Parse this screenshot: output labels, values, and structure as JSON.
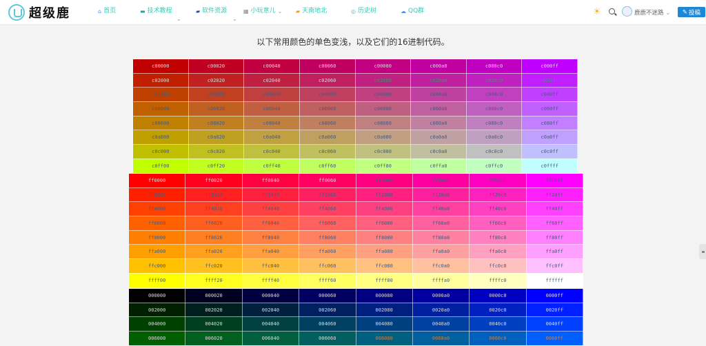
{
  "header": {
    "logo_text": "超级鹿",
    "nav": [
      {
        "label": "首页",
        "icon": "home-icon",
        "glyph": "⌂",
        "color": "#4a90e2"
      },
      {
        "label": "技术教程",
        "icon": "monitor-icon",
        "glyph": "▬",
        "color": "#2aa198"
      },
      {
        "label": "软件资源",
        "icon": "folder-icon",
        "glyph": "▰",
        "color": "#2a4a9a"
      },
      {
        "label": "小玩意儿",
        "icon": "toy-icon",
        "glyph": "▦",
        "color": "#888"
      },
      {
        "label": "天南地北",
        "icon": "chat-icon",
        "glyph": "▰",
        "color": "#f39c12"
      },
      {
        "label": "历史树",
        "icon": "clock-icon",
        "glyph": "◎",
        "color": "#3cc8b4"
      },
      {
        "label": "QQ群",
        "icon": "cloud-icon",
        "glyph": "☁",
        "color": "#4a90e2"
      }
    ],
    "user_name": "鹿鹿不迷路",
    "submit_label": "投稿",
    "accent": "#1e88d8"
  },
  "main": {
    "title": "以下常用颜色的单色变浅，以及它们的16进制代码。",
    "tables": [
      {
        "rows": [
          [
            "c00000",
            "c00020",
            "c00040",
            "c00060",
            "c00080",
            "c000a0",
            "c000c0",
            "c000ff"
          ],
          [
            "c02000",
            "c02020",
            "c02040",
            "c02060",
            "c02080",
            "c020a0",
            "c020c0",
            "c020ff"
          ],
          [
            "c04000",
            "c04020",
            "c04040",
            "c04060",
            "c04080",
            "c040a0",
            "c040c0",
            "c040ff"
          ],
          [
            "c06000",
            "c06020",
            "c06040",
            "c06060",
            "c06080",
            "c060a0",
            "c060c0",
            "c060ff"
          ],
          [
            "c08000",
            "c08020",
            "c08040",
            "c08060",
            "c08080",
            "c080a0",
            "c080c0",
            "c080ff"
          ],
          [
            "c0a000",
            "c0a020",
            "c0a040",
            "c0a060",
            "c0a080",
            "c0a0a0",
            "c0a0c0",
            "c0a0ff"
          ],
          [
            "c0c000",
            "c0c020",
            "c0c040",
            "c0c060",
            "c0c080",
            "c0c0a0",
            "c0c0c0",
            "c0c0ff"
          ],
          [
            "c0ff00",
            "c0ff20",
            "c0ff40",
            "c0ff60",
            "c0ff80",
            "c0ffa0",
            "c0ffc0",
            "c0ffff"
          ]
        ]
      },
      {
        "rows": [
          [
            "ff0000",
            "ff0020",
            "ff0040",
            "ff0060",
            "ff0080",
            "ff00a0",
            "ff00c0",
            "ff00ff"
          ],
          [
            "ff2000",
            "ff2020",
            "ff2040",
            "ff2060",
            "ff2080",
            "ff20a0",
            "ff20c0",
            "ff20ff"
          ],
          [
            "ff4000",
            "ff4020",
            "ff4040",
            "ff4060",
            "ff4080",
            "ff40a0",
            "ff40c0",
            "ff40ff"
          ],
          [
            "ff6000",
            "ff6020",
            "ff6040",
            "ff6060",
            "ff6080",
            "ff60a0",
            "ff60c0",
            "ff60ff"
          ],
          [
            "ff8000",
            "ff8020",
            "ff8040",
            "ff8060",
            "ff8080",
            "ff80a0",
            "ff80c0",
            "ff80ff"
          ],
          [
            "ffa000",
            "ffa020",
            "ffa040",
            "ffa060",
            "ffa080",
            "ffa0a0",
            "ffa0c0",
            "ffa0ff"
          ],
          [
            "ffc000",
            "ffc020",
            "ffc040",
            "ffc060",
            "ffc080",
            "ffc0a0",
            "ffc0c0",
            "ffc0ff"
          ],
          [
            "ffff00",
            "ffff20",
            "ffff40",
            "ffff60",
            "ffff80",
            "ffffa0",
            "ffffc0",
            "ffffff"
          ]
        ]
      },
      {
        "rows": [
          [
            "000000",
            "000020",
            "000040",
            "000060",
            "000080",
            "0000a0",
            "0000c0",
            "0000ff"
          ],
          [
            "002000",
            "002020",
            "002040",
            "002060",
            "002080",
            "0020a0",
            "0020c0",
            "0020ff"
          ],
          [
            "004000",
            "004020",
            "004040",
            "004060",
            "004080",
            "0040a0",
            "0040c0",
            "0040ff"
          ],
          [
            "006000",
            "006020",
            "006040",
            "006060",
            "006080",
            "0060a0",
            "0060c0",
            "0060ff"
          ]
        ]
      }
    ]
  }
}
